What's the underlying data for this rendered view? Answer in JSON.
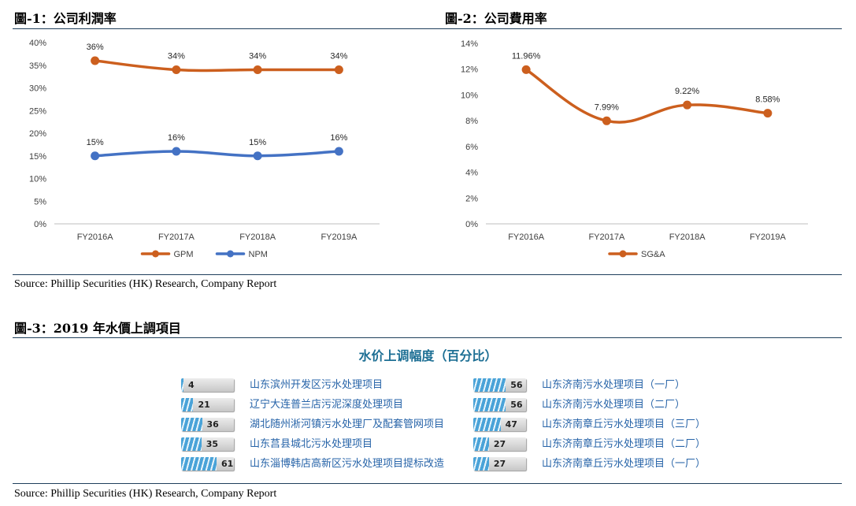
{
  "figure1": {
    "title": "圖-1：公司利潤率",
    "chart_data": {
      "type": "line",
      "categories": [
        "FY2016A",
        "FY2017A",
        "FY2018A",
        "FY2019A"
      ],
      "series": [
        {
          "name": "GPM",
          "values": [
            36,
            34,
            34,
            34
          ],
          "labels": [
            "36%",
            "34%",
            "34%",
            "34%"
          ],
          "color": "#cc5f1e"
        },
        {
          "name": "NPM",
          "values": [
            15,
            16,
            15,
            16
          ],
          "labels": [
            "15%",
            "16%",
            "15%",
            "16%"
          ],
          "color": "#4472c4"
        }
      ],
      "yticks": [
        "0%",
        "5%",
        "10%",
        "15%",
        "20%",
        "25%",
        "30%",
        "35%",
        "40%"
      ],
      "ylim": [
        0,
        40
      ],
      "legend": "bottom"
    }
  },
  "figure2": {
    "title": "圖-2：公司費用率",
    "chart_data": {
      "type": "line",
      "categories": [
        "FY2016A",
        "FY2017A",
        "FY2018A",
        "FY2019A"
      ],
      "series": [
        {
          "name": "SG&A",
          "values": [
            11.96,
            7.99,
            9.22,
            8.58
          ],
          "labels": [
            "11.96%",
            "7.99%",
            "9.22%",
            "8.58%"
          ],
          "color": "#cc5f1e"
        }
      ],
      "yticks": [
        "0%",
        "2%",
        "4%",
        "6%",
        "8%",
        "10%",
        "12%",
        "14%"
      ],
      "ylim": [
        0,
        14
      ],
      "legend": "bottom"
    }
  },
  "source1": "Source: Phillip Securities (HK) Research, Company Report",
  "figure3": {
    "title": "圖-3：2019 年水價上調項目",
    "chart_title": "水价上调幅度（百分比）",
    "chart_data": {
      "type": "bar",
      "categories": [
        "山东滨州开发区污水处理项目",
        "辽宁大连普兰店污泥深度处理项目",
        "湖北随州淅河镇污水处理厂及配套管网项目",
        "山东莒县城北污水处理项目",
        "山东淄博韩店高新区污水处理项目提标改造",
        "山东济南污水处理项目（一厂）",
        "山东济南污水处理项目（二厂）",
        "山东济南章丘污水处理项目（三厂）",
        "山东济南章丘污水处理项目（二厂）",
        "山东济南章丘污水处理项目（一厂）"
      ],
      "values": [
        4,
        21,
        36,
        35,
        61,
        56,
        56,
        47,
        27,
        27
      ],
      "value_labels": [
        "4",
        "21",
        "36",
        "35",
        "61",
        "56",
        "56",
        "47",
        "27",
        "27"
      ],
      "bar_color": "#4aa3d8"
    }
  },
  "source2": "Source: Phillip Securities (HK) Research, Company Report"
}
